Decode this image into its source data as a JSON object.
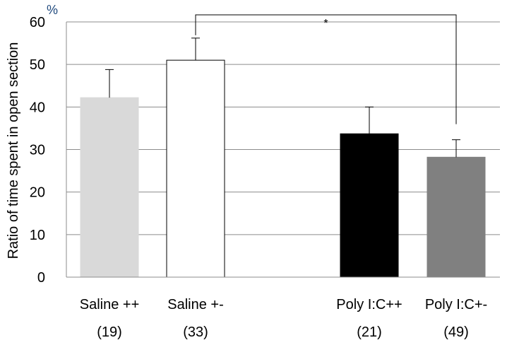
{
  "chart_data": {
    "type": "bar",
    "ylabel": "Ratio of time spent in open section",
    "yunit": "%",
    "ylim": [
      0,
      60
    ],
    "yticks": [
      0,
      10,
      20,
      30,
      40,
      50,
      60
    ],
    "grid": true,
    "categories": [
      "Saline ++",
      "Saline +-",
      "Poly I:C++",
      "Poly I:C+-"
    ],
    "sample_sizes": [
      "(19)",
      "(33)",
      "(21)",
      "(49)"
    ],
    "values": [
      42.2,
      51.0,
      33.7,
      28.2
    ],
    "errors": [
      6.6,
      5.2,
      6.3,
      4.1
    ],
    "colors": [
      "#d9d9d9",
      "#ffffff",
      "#000000",
      "#808080"
    ],
    "significance": {
      "from": 1,
      "to": 3,
      "label": "*"
    }
  }
}
